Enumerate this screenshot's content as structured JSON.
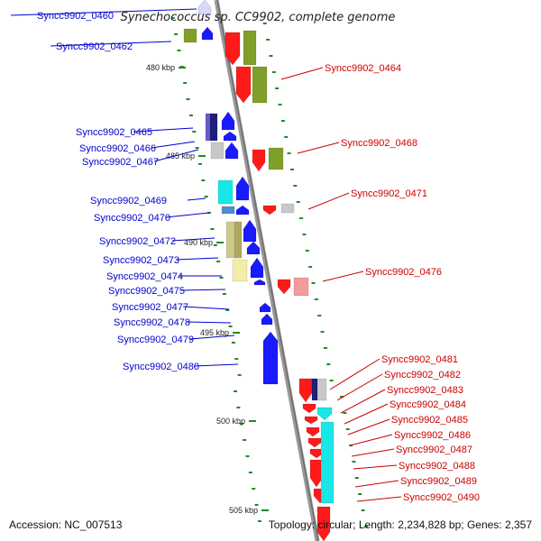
{
  "title": "Synechococcus sp. CC9902, complete genome",
  "footer": {
    "accession": "Accession: NC_007513",
    "topology": "Topology: circular; Length: 2,234,828 bp; Genes: 2,357"
  },
  "colors": {
    "left_label": "#0000cc",
    "right_label": "#cc0000",
    "forward_gene": "#1a1aff",
    "reverse_gene": "#ff1a1a",
    "cog_green": "#7f9f2a",
    "cog_cyan": "#19e6e6",
    "cog_khaki": "#cfc98a",
    "cog_lightyellow": "#f3eda8",
    "cog_grey": "#c8c8c8",
    "cog_navy": "#20207a",
    "cog_purple": "#6a5acd",
    "cog_pink": "#f39a9a",
    "backbone": "#999999",
    "tick": "#228b22"
  },
  "kbp_labels": [
    "480 kbp",
    "485 kbp",
    "490 kbp",
    "495 kbp",
    "500 kbp",
    "505 kbp"
  ],
  "left_labels": [
    "Syncc9902_0460",
    "Syncc9902_0462",
    "Syncc9902_0465",
    "Syncc9902_0466",
    "Syncc9902_0467",
    "Syncc9902_0469",
    "Syncc9902_0470",
    "Syncc9902_0472",
    "Syncc9902_0473",
    "Syncc9902_0474",
    "Syncc9902_0475",
    "Syncc9902_0477",
    "Syncc9902_0478",
    "Syncc9902_0479",
    "Syncc9902_0480"
  ],
  "right_labels": [
    "Syncc9902_0464",
    "Syncc9902_0468",
    "Syncc9902_0471",
    "Syncc9902_0476",
    "Syncc9902_0481",
    "Syncc9902_0482",
    "Syncc9902_0483",
    "Syncc9902_0484",
    "Syncc9902_0485",
    "Syncc9902_0486",
    "Syncc9902_0487",
    "Syncc9902_0488",
    "Syncc9902_0489",
    "Syncc9902_0490"
  ]
}
